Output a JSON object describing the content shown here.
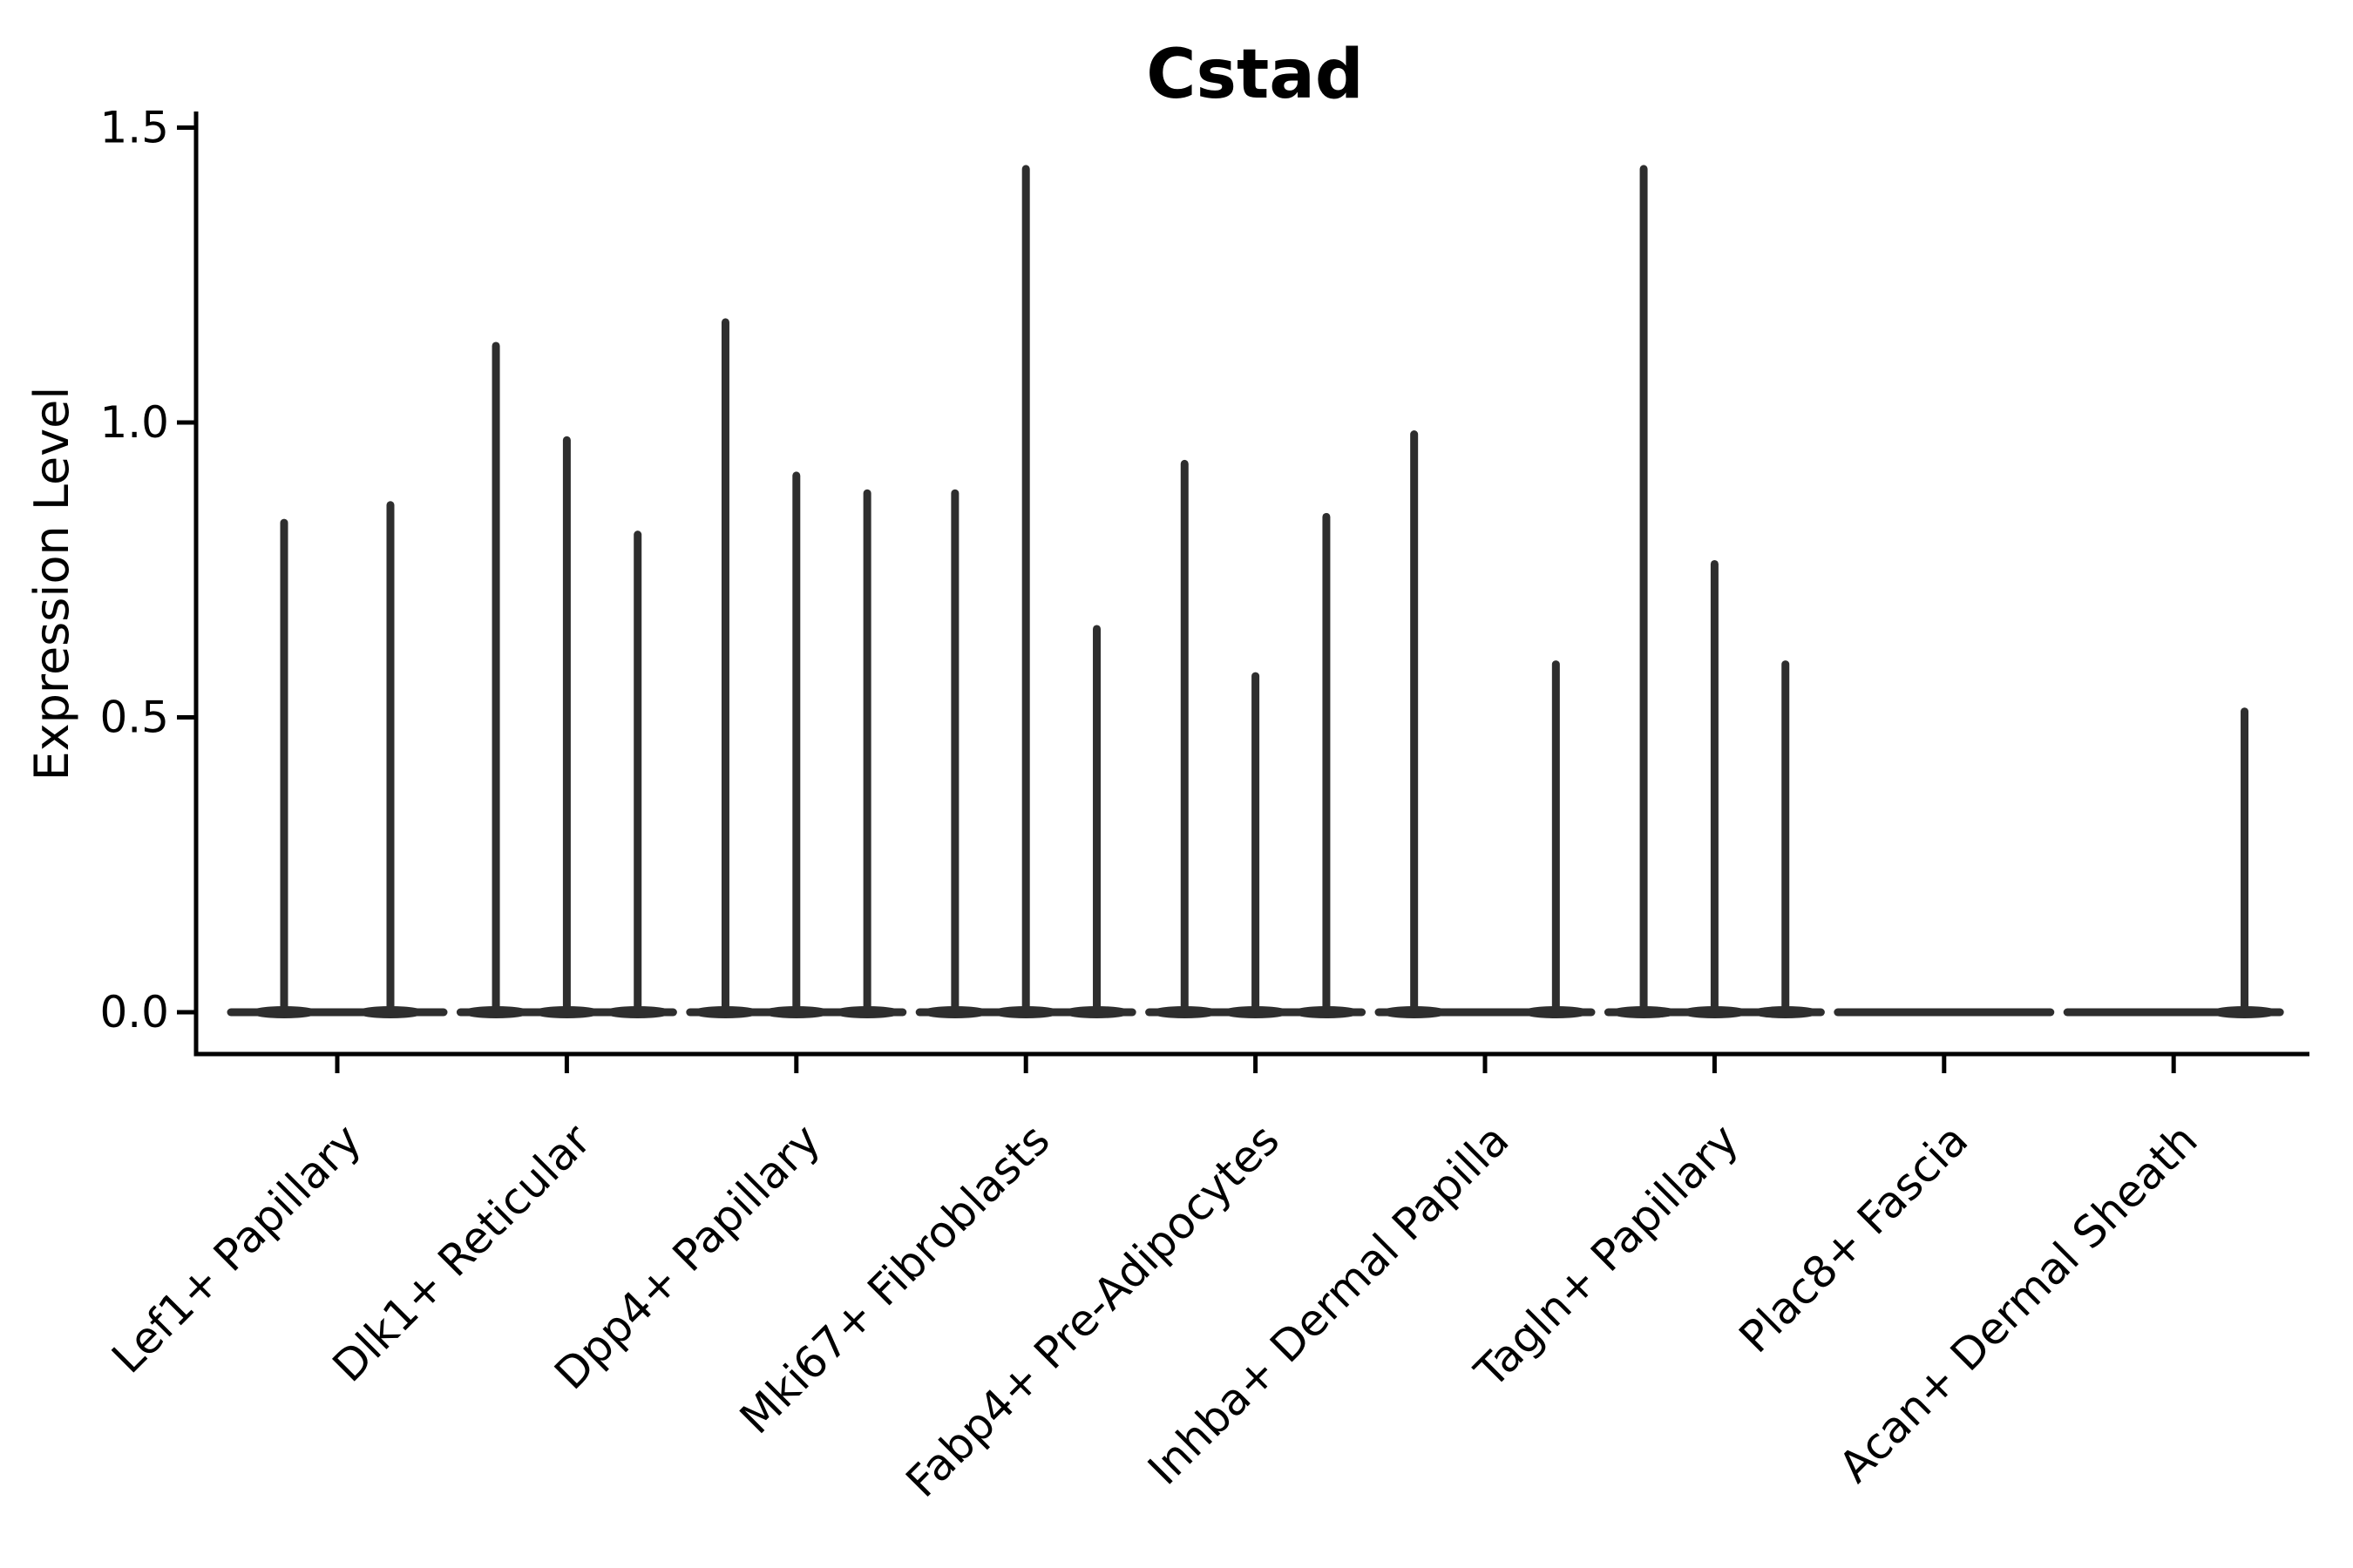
{
  "figure_background": "#ffffff",
  "chart_data": {
    "type": "violin",
    "title": "Cstad",
    "xlabel": "",
    "ylabel": "Expression Level",
    "ylim": [
      0,
      1.5
    ],
    "yticks": [
      0.0,
      0.5,
      1.0,
      1.5
    ],
    "ytick_labels": [
      "0.0",
      "0.5",
      "1.0",
      "1.5"
    ],
    "grid": false,
    "legend": "none",
    "x_tick_rotation_deg": 45,
    "line_color": "#2e2e2e",
    "axis_color": "#000000",
    "categories": [
      "Lef1+ Papillary",
      "Dlk1+ Reticular",
      "Dpp4+ Papillary",
      "Mki67+ Fibroblasts",
      "Fabp4+ Pre-Adipocytes",
      "Inhba+ Dermal Papilla",
      "Tagln+ Papillary",
      "Plac8+ Fascia",
      "Acan+ Dermal Sheath"
    ],
    "groups": [
      {
        "category": "Lef1+ Papillary",
        "violin_max_expression": [
          0.83,
          0.86
        ]
      },
      {
        "category": "Dlk1+ Reticular",
        "violin_max_expression": [
          1.13,
          0.97,
          0.81
        ]
      },
      {
        "category": "Dpp4+ Papillary",
        "violin_max_expression": [
          1.17,
          0.91,
          0.88
        ]
      },
      {
        "category": "Mki67+ Fibroblasts",
        "violin_max_expression": [
          0.88,
          1.43,
          0.65
        ]
      },
      {
        "category": "Fabp4+ Pre-Adipocytes",
        "violin_max_expression": [
          0.93,
          0.57,
          0.84
        ]
      },
      {
        "category": "Inhba+ Dermal Papilla",
        "violin_max_expression": [
          0.98,
          0.0,
          0.59
        ]
      },
      {
        "category": "Tagln+ Papillary",
        "violin_max_expression": [
          1.43,
          0.76,
          0.59
        ]
      },
      {
        "category": "Plac8+ Fascia",
        "violin_max_expression": [
          0.0,
          0.0,
          0.0
        ]
      },
      {
        "category": "Acan+ Dermal Sheath",
        "violin_max_expression": [
          0.0,
          0.0,
          0.51
        ]
      }
    ]
  }
}
